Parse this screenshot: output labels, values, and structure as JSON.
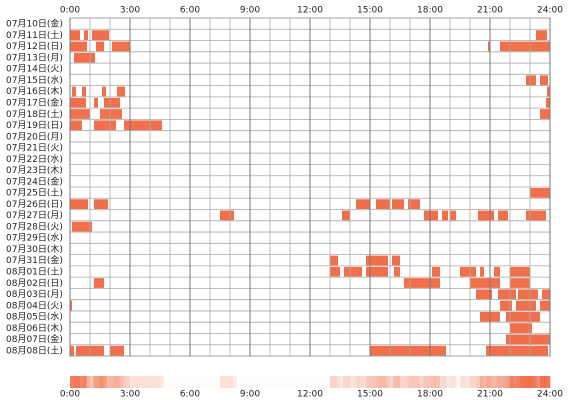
{
  "chart_data": {
    "type": "timeline",
    "color": "#f0704c",
    "xlim": [
      0,
      24
    ],
    "xticks": [
      {
        "value": 0,
        "label": "0:00"
      },
      {
        "value": 3,
        "label": "3:00"
      },
      {
        "value": 6,
        "label": "6:00"
      },
      {
        "value": 9,
        "label": "9:00"
      },
      {
        "value": 12,
        "label": "12:00"
      },
      {
        "value": 15,
        "label": "15:00"
      },
      {
        "value": 18,
        "label": "18:00"
      },
      {
        "value": 21,
        "label": "21:00"
      },
      {
        "value": 24,
        "label": "24:00"
      }
    ],
    "categories": [
      "07月10日(金)",
      "07月11日(土)",
      "07月12日(日)",
      "07月13日(月)",
      "07月14日(火)",
      "07月15日(水)",
      "07月16日(木)",
      "07月17日(金)",
      "07月18日(土)",
      "07月19日(日)",
      "07月20日(月)",
      "07月21日(火)",
      "07月22日(水)",
      "07月23日(木)",
      "07月24日(金)",
      "07月25日(土)",
      "07月26日(日)",
      "07月27日(月)",
      "07月28日(火)",
      "07月29日(水)",
      "07月30日(木)",
      "07月31日(金)",
      "08月01日(土)",
      "08月02日(日)",
      "08月03日(月)",
      "08月04日(火)",
      "08月05日(水)",
      "08月06日(木)",
      "08月07日(金)",
      "08月08日(土)"
    ],
    "segments": [
      [],
      [
        [
          0,
          0.5
        ],
        [
          0.7,
          0.9
        ],
        [
          1.1,
          1.95
        ],
        [
          23.3,
          23.85
        ]
      ],
      [
        [
          0,
          0.85
        ],
        [
          1.3,
          1.7
        ],
        [
          2.1,
          3.0
        ],
        [
          20.9,
          21.0
        ],
        [
          21.5,
          24
        ]
      ],
      [
        [
          0.2,
          1.25
        ]
      ],
      [],
      [
        [
          22.8,
          23.3
        ],
        [
          23.5,
          23.9
        ]
      ],
      [
        [
          0.1,
          0.3
        ],
        [
          0.6,
          0.8
        ],
        [
          1.6,
          1.8
        ],
        [
          2.35,
          2.75
        ],
        [
          23.85,
          24
        ]
      ],
      [
        [
          0,
          0.8
        ],
        [
          1.2,
          1.4
        ],
        [
          1.7,
          2.5
        ],
        [
          23.8,
          24
        ]
      ],
      [
        [
          0,
          1.0
        ],
        [
          1.5,
          2.6
        ],
        [
          23.5,
          24
        ]
      ],
      [
        [
          0,
          0.6
        ],
        [
          1.2,
          2.3
        ],
        [
          2.7,
          4.6
        ]
      ],
      [],
      [],
      [],
      [],
      [],
      [
        [
          23.0,
          24
        ]
      ],
      [
        [
          0,
          0.9
        ],
        [
          1.2,
          1.9
        ],
        [
          14.3,
          15.0
        ],
        [
          15.3,
          16.0
        ],
        [
          16.1,
          16.7
        ],
        [
          16.9,
          17.5
        ]
      ],
      [
        [
          7.5,
          8.2
        ],
        [
          13.6,
          14.0
        ],
        [
          17.7,
          18.4
        ],
        [
          18.6,
          18.9
        ],
        [
          19.0,
          19.3
        ],
        [
          20.4,
          21.2
        ],
        [
          21.4,
          21.9
        ],
        [
          22.8,
          23.8
        ]
      ],
      [
        [
          0.1,
          1.1
        ]
      ],
      [],
      [],
      [
        [
          13.0,
          13.4
        ],
        [
          14.8,
          15.9
        ],
        [
          16.1,
          16.5
        ]
      ],
      [
        [
          13.0,
          13.5
        ],
        [
          13.7,
          14.6
        ],
        [
          14.8,
          15.9
        ],
        [
          16.2,
          16.5
        ],
        [
          18.1,
          18.5
        ],
        [
          19.5,
          20.3
        ],
        [
          20.5,
          20.7
        ],
        [
          21.2,
          21.5
        ],
        [
          22.0,
          23.0
        ]
      ],
      [
        [
          1.2,
          1.7
        ],
        [
          16.7,
          18.5
        ],
        [
          20.0,
          21.5
        ],
        [
          22.0,
          23.0
        ]
      ],
      [
        [
          20.3,
          21.1
        ],
        [
          21.4,
          22.3
        ],
        [
          22.4,
          23.4
        ],
        [
          23.6,
          24
        ]
      ],
      [
        [
          0,
          0.1
        ],
        [
          21.5,
          22.1
        ],
        [
          22.3,
          23.3
        ],
        [
          23.5,
          24
        ]
      ],
      [
        [
          20.5,
          21.5
        ],
        [
          21.8,
          23.5
        ]
      ],
      [
        [
          22.0,
          23.1
        ]
      ],
      [
        [
          21.8,
          24
        ]
      ],
      [
        [
          0,
          0.2
        ],
        [
          0.3,
          1.7
        ],
        [
          2.0,
          2.7
        ],
        [
          15.0,
          18.8
        ],
        [
          20.8,
          23.9
        ]
      ]
    ]
  }
}
